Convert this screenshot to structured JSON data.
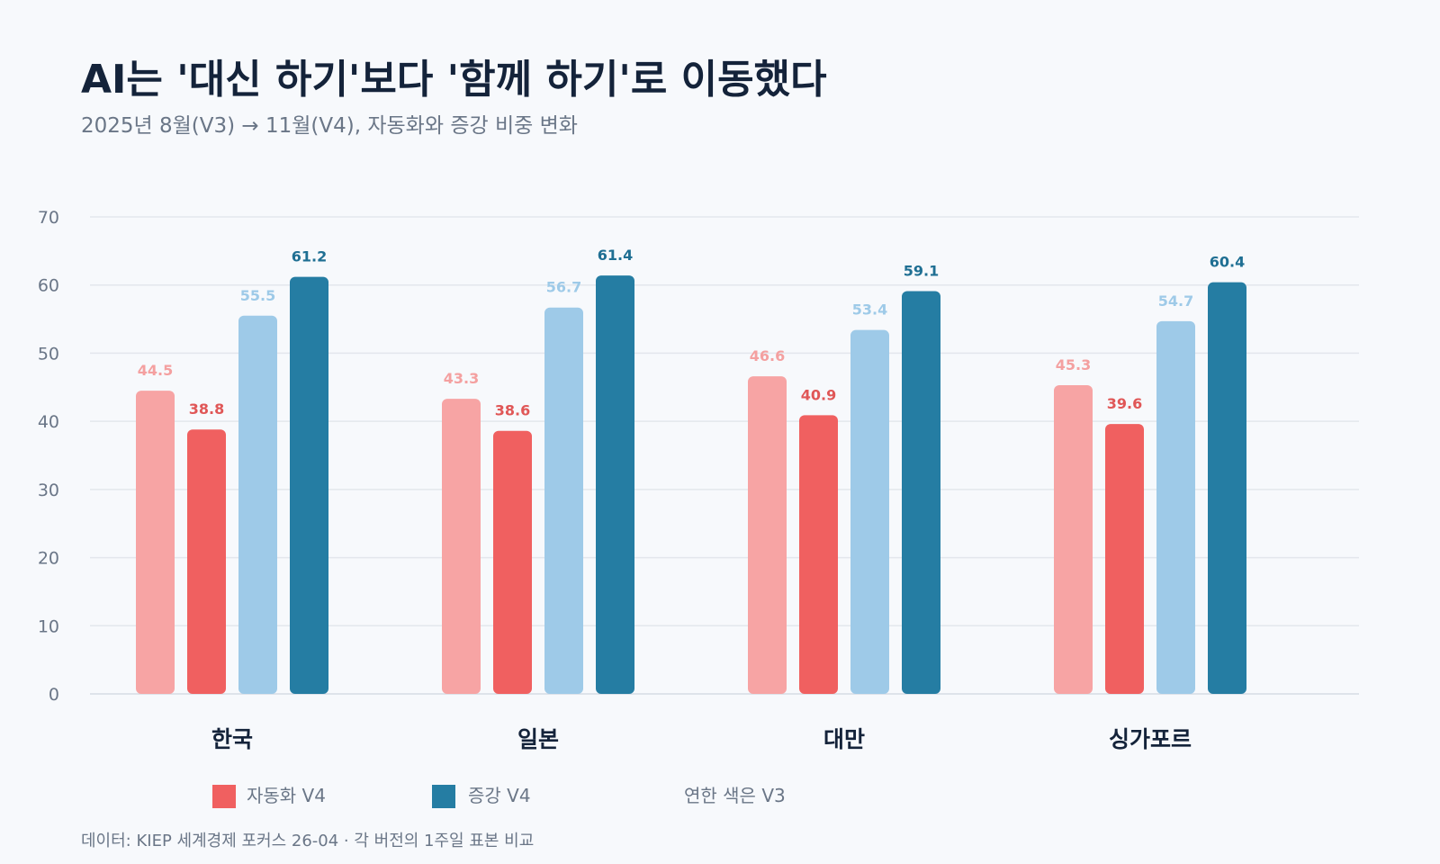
{
  "title": "AI는 '대신 하기'보다 '함께 하기'로 이동했다",
  "subtitle": "2025년 8월(V3) → 11월(V4), 자동화와 증강 비중 변화",
  "chart_data": {
    "type": "bar",
    "categories": [
      "한국",
      "일본",
      "대만",
      "싱가포르"
    ],
    "series": [
      {
        "name": "자동화 V3",
        "values": [
          44.5,
          43.3,
          46.6,
          45.3
        ],
        "color": "#f7a4a4"
      },
      {
        "name": "자동화 V4",
        "values": [
          38.8,
          38.6,
          40.9,
          39.6
        ],
        "color": "#f06060"
      },
      {
        "name": "증강 V3",
        "values": [
          55.5,
          56.7,
          53.4,
          54.7
        ],
        "color": "#9ecae8"
      },
      {
        "name": "증강 V4",
        "values": [
          61.2,
          61.4,
          59.1,
          60.4
        ],
        "color": "#257da3"
      }
    ],
    "yticks": [
      0,
      10,
      20,
      30,
      40,
      50,
      60,
      70
    ],
    "ylim": [
      0,
      70
    ],
    "grid": true,
    "legend_position": "bottom-left"
  },
  "legend": {
    "items": [
      {
        "label": "자동화 V4",
        "color": "#f06060"
      },
      {
        "label": "증강 V4",
        "color": "#257da3"
      }
    ],
    "note": "연한 색은 V3"
  },
  "footnote": "데이터: KIEP 세계경제 포커스 26-04 · 각 버전의 1주일 표본 비교"
}
